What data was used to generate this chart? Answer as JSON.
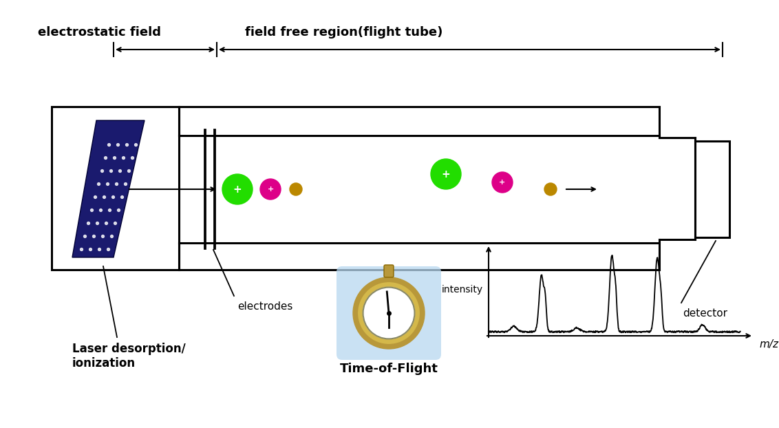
{
  "bg_color": "#ffffff",
  "text_color": "#000000",
  "label_electrostatic": "electrostatic field",
  "label_field_free": "field free region(flight tube)",
  "label_electrodes": "electrodes",
  "label_laser": "Laser desorption/\nionization",
  "label_detector": "detector",
  "label_tof": "Time-of-Flight",
  "label_intensity": "intensity",
  "label_mz": "m/z",
  "tube_color": "#000000",
  "green_ion_color": "#22dd00",
  "pink_ion_color": "#dd0088",
  "gold_ion_color": "#bb8800",
  "clock_bg_color": "#b8d8f0",
  "spectrum_color": "#000000",
  "lw": 2.2,
  "fig_w": 11.32,
  "fig_h": 6.22
}
